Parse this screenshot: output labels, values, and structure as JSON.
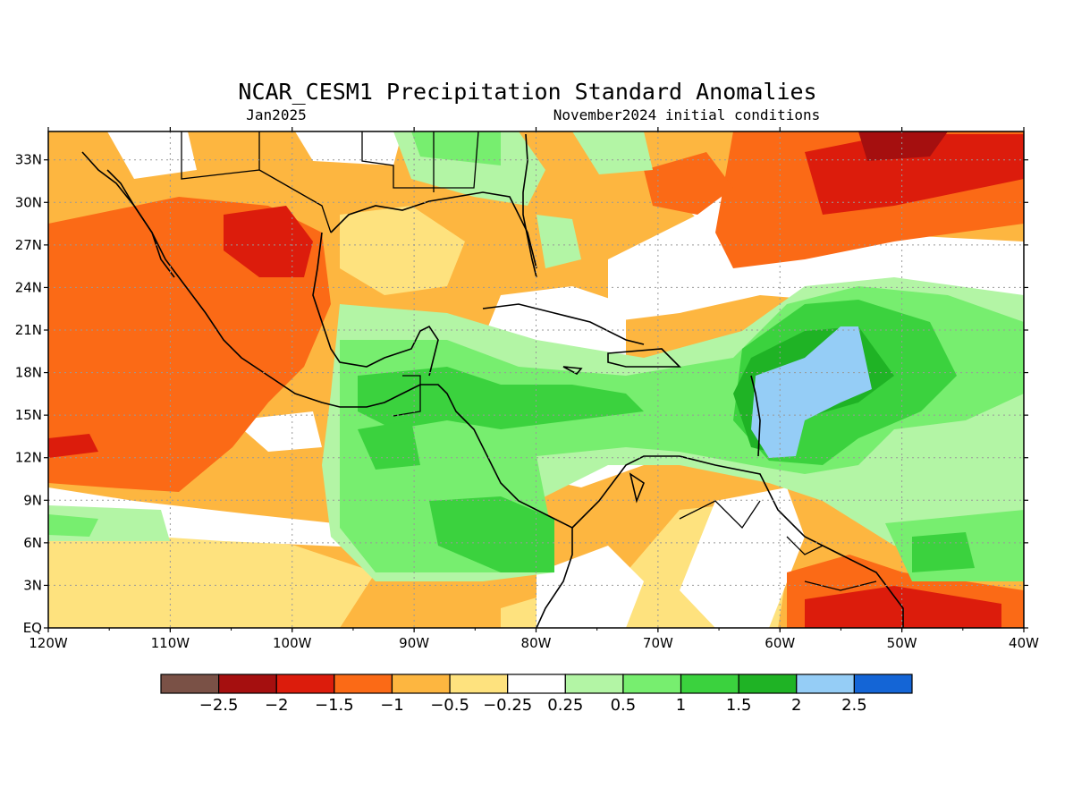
{
  "title": "NCAR_CESM1 Precipitation Standard Anomalies",
  "valid_label": "Jan2025",
  "init_label": "November2024 initial conditions",
  "map": {
    "lon_range": [
      -120,
      -40
    ],
    "lat_range": [
      0,
      35
    ],
    "lat_ticks": [
      {
        "value": 0,
        "label": "EQ"
      },
      {
        "value": 3,
        "label": "3N"
      },
      {
        "value": 6,
        "label": "6N"
      },
      {
        "value": 9,
        "label": "9N"
      },
      {
        "value": 12,
        "label": "12N"
      },
      {
        "value": 15,
        "label": "15N"
      },
      {
        "value": 18,
        "label": "18N"
      },
      {
        "value": 21,
        "label": "21N"
      },
      {
        "value": 24,
        "label": "24N"
      },
      {
        "value": 27,
        "label": "27N"
      },
      {
        "value": 30,
        "label": "30N"
      },
      {
        "value": 33,
        "label": "33N"
      }
    ],
    "lon_ticks": [
      {
        "value": -120,
        "label": "120W"
      },
      {
        "value": -110,
        "label": "110W"
      },
      {
        "value": -100,
        "label": "100W"
      },
      {
        "value": -90,
        "label": "90W"
      },
      {
        "value": -80,
        "label": "80W"
      },
      {
        "value": -70,
        "label": "70W"
      },
      {
        "value": -60,
        "label": "60W"
      },
      {
        "value": -50,
        "label": "50W"
      },
      {
        "value": -40,
        "label": "40W"
      }
    ],
    "grid": "dotted"
  },
  "colorbar": {
    "colors": [
      "#7a5146",
      "#a50f0f",
      "#dc1c0c",
      "#fb6a16",
      "#fdb640",
      "#fee27e",
      "#ffffff",
      "#b3f5a5",
      "#77ee6f",
      "#3bd23e",
      "#1fb325",
      "#95cdf6",
      "#1465d6"
    ],
    "labels": [
      "−2.5",
      "−2",
      "−1.5",
      "−1",
      "−0.5",
      "−0.25",
      "0.25",
      "0.5",
      "1",
      "1.5",
      "2",
      "2.5"
    ]
  }
}
